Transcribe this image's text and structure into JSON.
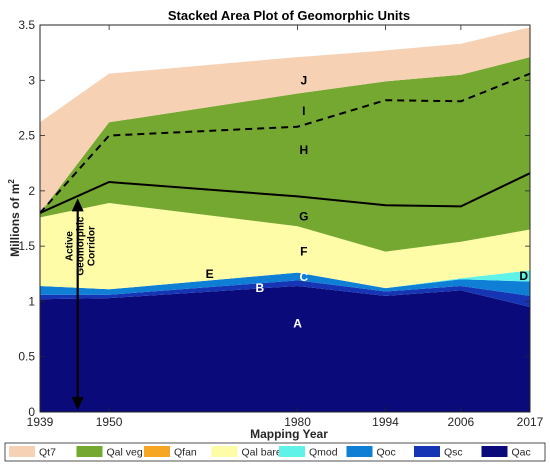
{
  "chart_data": {
    "type": "area",
    "stacked": true,
    "title": "Stacked Area Plot of Geomorphic Units",
    "xlabel": "Mapping Year",
    "ylabel_main": "Millions of m",
    "ylabel_sup": "2",
    "x": [
      1939,
      1950,
      1980,
      1994,
      2006,
      2017
    ],
    "xlim": [
      1939,
      2017
    ],
    "ylim": [
      0,
      3.5
    ],
    "yticks": [
      0,
      0.5,
      1,
      1.5,
      2,
      2.5,
      3,
      3.5
    ],
    "ytick_labels": [
      "0",
      "0.5",
      "1",
      "1.5",
      "2",
      "2.5",
      "3",
      "3.5"
    ],
    "xtick_labels": [
      "1939",
      "1950",
      "1980",
      "1994",
      "2006",
      "2017"
    ],
    "grid": false,
    "legend_position": "bottom",
    "series": [
      {
        "name": "Qac",
        "color": "#0a0a7a",
        "values": [
          1.02,
          1.03,
          1.14,
          1.05,
          1.1,
          0.95
        ]
      },
      {
        "name": "Qsc",
        "color": "#1535b5",
        "values": [
          0.04,
          0.03,
          0.05,
          0.04,
          0.04,
          0.1
        ]
      },
      {
        "name": "Qoc",
        "color": "#0f7fd6",
        "values": [
          0.08,
          0.05,
          0.07,
          0.03,
          0.06,
          0.13
        ]
      },
      {
        "name": "Qmod",
        "color": "#5ef2e8",
        "values": [
          0.0,
          0.0,
          0.0,
          0.0,
          0.01,
          0.1
        ]
      },
      {
        "name": "Qal bare",
        "color": "#fefca6",
        "values": [
          0.62,
          0.78,
          0.42,
          0.33,
          0.33,
          0.37
        ]
      },
      {
        "name": "Qfan",
        "color": "#f6a623",
        "values": [
          0.0,
          0.0,
          0.0,
          0.0,
          0.0,
          0.0
        ]
      },
      {
        "name": "Qal veg",
        "color": "#75a830",
        "values": [
          0.04,
          0.73,
          1.2,
          1.54,
          1.51,
          1.56
        ]
      },
      {
        "name": "Qt7",
        "color": "#f7d1b4",
        "values": [
          0.82,
          0.44,
          0.33,
          0.28,
          0.28,
          0.27
        ]
      }
    ],
    "lines": [
      {
        "style": "solid",
        "values": [
          1.8,
          2.08,
          1.95,
          1.87,
          1.86,
          2.16
        ]
      },
      {
        "style": "dashed",
        "values": [
          1.8,
          2.5,
          2.58,
          2.82,
          2.81,
          3.06
        ]
      }
    ],
    "region_labels": [
      {
        "text": "A",
        "x": 1980,
        "y": 0.8,
        "color": "#ffffff"
      },
      {
        "text": "B",
        "x": 1974,
        "y": 1.12,
        "color": "#ffffff"
      },
      {
        "text": "C",
        "x": 1981,
        "y": 1.22,
        "color": "#ffffff"
      },
      {
        "text": "D",
        "x": 2016,
        "y": 1.23,
        "color": "#000000"
      },
      {
        "text": "E",
        "x": 1966,
        "y": 1.25,
        "color": "#000000"
      },
      {
        "text": "F",
        "x": 1981,
        "y": 1.45,
        "color": "#000000"
      },
      {
        "text": "G",
        "x": 1981,
        "y": 1.77,
        "color": "#000000"
      },
      {
        "text": "H",
        "x": 1981,
        "y": 2.37,
        "color": "#000000"
      },
      {
        "text": "I",
        "x": 1981,
        "y": 2.72,
        "color": "#000000"
      },
      {
        "text": "J",
        "x": 1981,
        "y": 3.0,
        "color": "#000000"
      }
    ],
    "annotation": {
      "lines": [
        "Active",
        "Geomorphic",
        "Corridor"
      ],
      "x": 1945,
      "y_top": 1.95,
      "y_bottom": 0.0
    },
    "legend_order": [
      "Qt7",
      "Qal veg",
      "Qfan",
      "Qal bare",
      "Qmod",
      "Qoc",
      "Qsc",
      "Qac"
    ]
  }
}
